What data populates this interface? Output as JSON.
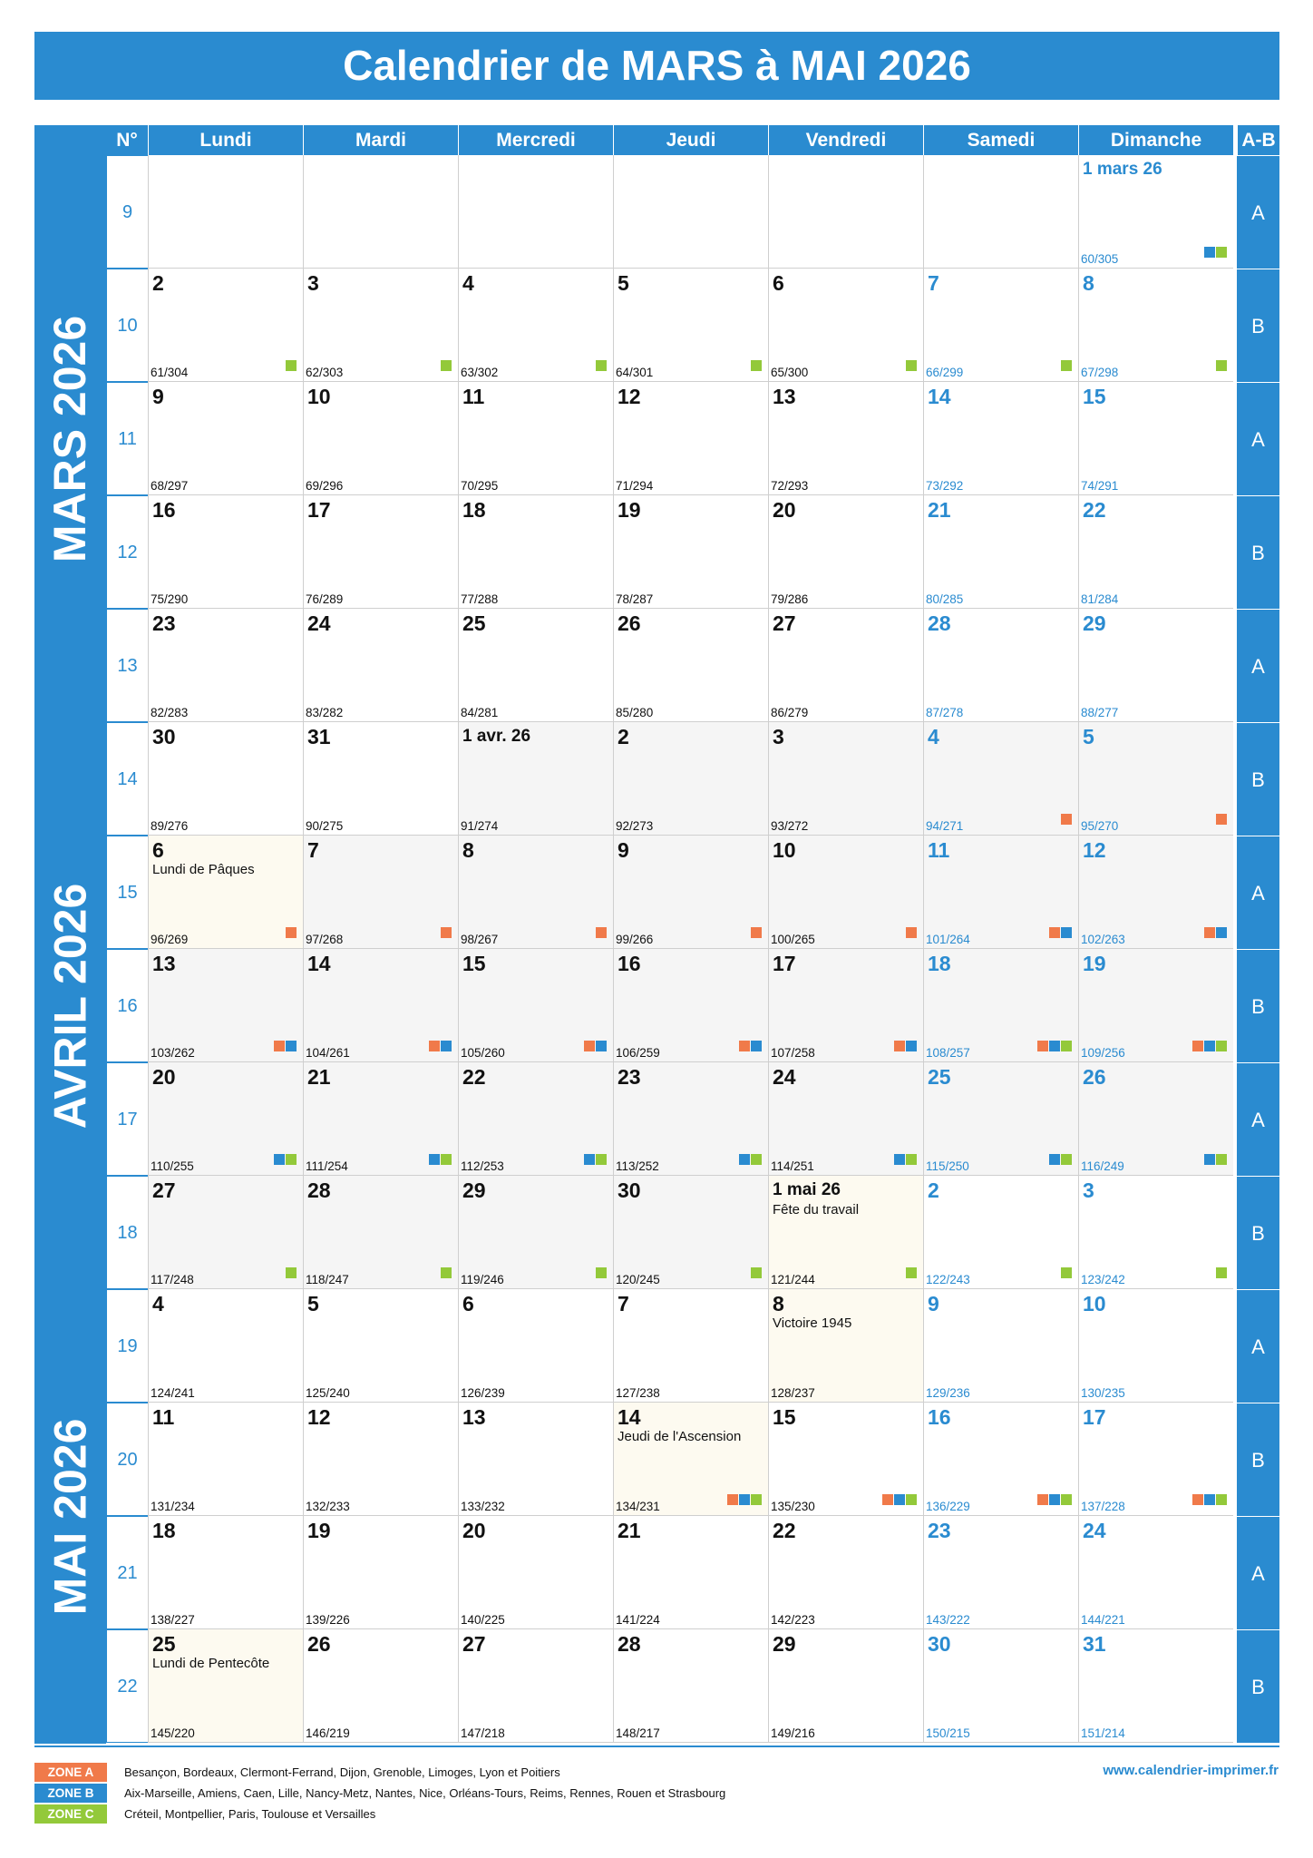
{
  "title": "Calendrier de MARS à MAI 2026",
  "headers": {
    "num": "N°",
    "days": [
      "Lundi",
      "Mardi",
      "Mercredi",
      "Jeudi",
      "Vendredi",
      "Samedi",
      "Dimanche"
    ],
    "ab": "A-B"
  },
  "months": [
    "MARS 2026",
    "AVRIL 2026",
    "MAI 2026"
  ],
  "weeks": [
    {
      "num": "9",
      "ab": "A",
      "days": [
        null,
        null,
        null,
        null,
        null,
        null,
        {
          "d": "1 mars 26",
          "c": "60/305",
          "z": "BC"
        }
      ]
    },
    {
      "num": "10",
      "ab": "B",
      "days": [
        {
          "d": "2",
          "c": "61/304",
          "z": "C"
        },
        {
          "d": "3",
          "c": "62/303",
          "z": "C"
        },
        {
          "d": "4",
          "c": "63/302",
          "z": "C"
        },
        {
          "d": "5",
          "c": "64/301",
          "z": "C"
        },
        {
          "d": "6",
          "c": "65/300",
          "z": "C"
        },
        {
          "d": "7",
          "c": "66/299",
          "z": "C"
        },
        {
          "d": "8",
          "c": "67/298",
          "z": "C"
        }
      ]
    },
    {
      "num": "11",
      "ab": "A",
      "days": [
        {
          "d": "9",
          "c": "68/297"
        },
        {
          "d": "10",
          "c": "69/296"
        },
        {
          "d": "11",
          "c": "70/295"
        },
        {
          "d": "12",
          "c": "71/294"
        },
        {
          "d": "13",
          "c": "72/293"
        },
        {
          "d": "14",
          "c": "73/292"
        },
        {
          "d": "15",
          "c": "74/291"
        }
      ]
    },
    {
      "num": "12",
      "ab": "B",
      "days": [
        {
          "d": "16",
          "c": "75/290"
        },
        {
          "d": "17",
          "c": "76/289"
        },
        {
          "d": "18",
          "c": "77/288"
        },
        {
          "d": "19",
          "c": "78/287"
        },
        {
          "d": "20",
          "c": "79/286"
        },
        {
          "d": "21",
          "c": "80/285"
        },
        {
          "d": "22",
          "c": "81/284"
        }
      ]
    },
    {
      "num": "13",
      "ab": "A",
      "days": [
        {
          "d": "23",
          "c": "82/283"
        },
        {
          "d": "24",
          "c": "83/282"
        },
        {
          "d": "25",
          "c": "84/281"
        },
        {
          "d": "26",
          "c": "85/280"
        },
        {
          "d": "27",
          "c": "86/279"
        },
        {
          "d": "28",
          "c": "87/278"
        },
        {
          "d": "29",
          "c": "88/277"
        }
      ]
    },
    {
      "num": "14",
      "ab": "B",
      "days": [
        {
          "d": "30",
          "c": "89/276"
        },
        {
          "d": "31",
          "c": "90/275"
        },
        {
          "d": "1 avr. 26",
          "c": "91/274",
          "g": 1
        },
        {
          "d": "2",
          "c": "92/273",
          "g": 1
        },
        {
          "d": "3",
          "c": "93/272",
          "g": 1
        },
        {
          "d": "4",
          "c": "94/271",
          "g": 1,
          "z": "A"
        },
        {
          "d": "5",
          "c": "95/270",
          "g": 1,
          "z": "A"
        }
      ]
    },
    {
      "num": "15",
      "ab": "A",
      "days": [
        {
          "d": "6",
          "c": "96/269",
          "h": "Lundi de Pâques",
          "z": "A"
        },
        {
          "d": "7",
          "c": "97/268",
          "g": 1,
          "z": "A"
        },
        {
          "d": "8",
          "c": "98/267",
          "g": 1,
          "z": "A"
        },
        {
          "d": "9",
          "c": "99/266",
          "g": 1,
          "z": "A"
        },
        {
          "d": "10",
          "c": "100/265",
          "g": 1,
          "z": "A"
        },
        {
          "d": "11",
          "c": "101/264",
          "g": 1,
          "z": "AB"
        },
        {
          "d": "12",
          "c": "102/263",
          "g": 1,
          "z": "AB"
        }
      ]
    },
    {
      "num": "16",
      "ab": "B",
      "days": [
        {
          "d": "13",
          "c": "103/262",
          "g": 1,
          "z": "AB"
        },
        {
          "d": "14",
          "c": "104/261",
          "g": 1,
          "z": "AB"
        },
        {
          "d": "15",
          "c": "105/260",
          "g": 1,
          "z": "AB"
        },
        {
          "d": "16",
          "c": "106/259",
          "g": 1,
          "z": "AB"
        },
        {
          "d": "17",
          "c": "107/258",
          "g": 1,
          "z": "AB"
        },
        {
          "d": "18",
          "c": "108/257",
          "g": 1,
          "z": "ABC"
        },
        {
          "d": "19",
          "c": "109/256",
          "g": 1,
          "z": "ABC"
        }
      ]
    },
    {
      "num": "17",
      "ab": "A",
      "days": [
        {
          "d": "20",
          "c": "110/255",
          "g": 1,
          "z": "BC"
        },
        {
          "d": "21",
          "c": "111/254",
          "g": 1,
          "z": "BC"
        },
        {
          "d": "22",
          "c": "112/253",
          "g": 1,
          "z": "BC"
        },
        {
          "d": "23",
          "c": "113/252",
          "g": 1,
          "z": "BC"
        },
        {
          "d": "24",
          "c": "114/251",
          "g": 1,
          "z": "BC"
        },
        {
          "d": "25",
          "c": "115/250",
          "g": 1,
          "z": "BC"
        },
        {
          "d": "26",
          "c": "116/249",
          "g": 1,
          "z": "BC"
        }
      ]
    },
    {
      "num": "18",
      "ab": "B",
      "days": [
        {
          "d": "27",
          "c": "117/248",
          "g": 1,
          "z": "C"
        },
        {
          "d": "28",
          "c": "118/247",
          "g": 1,
          "z": "C"
        },
        {
          "d": "29",
          "c": "119/246",
          "g": 1,
          "z": "C"
        },
        {
          "d": "30",
          "c": "120/245",
          "g": 1,
          "z": "C"
        },
        {
          "d": "1 mai 26",
          "c": "121/244",
          "h": "Fête du travail",
          "z": "C"
        },
        {
          "d": "2",
          "c": "122/243",
          "z": "C"
        },
        {
          "d": "3",
          "c": "123/242",
          "z": "C"
        }
      ]
    },
    {
      "num": "19",
      "ab": "A",
      "days": [
        {
          "d": "4",
          "c": "124/241"
        },
        {
          "d": "5",
          "c": "125/240"
        },
        {
          "d": "6",
          "c": "126/239"
        },
        {
          "d": "7",
          "c": "127/238"
        },
        {
          "d": "8",
          "c": "128/237",
          "h": "Victoire 1945"
        },
        {
          "d": "9",
          "c": "129/236"
        },
        {
          "d": "10",
          "c": "130/235"
        }
      ]
    },
    {
      "num": "20",
      "ab": "B",
      "days": [
        {
          "d": "11",
          "c": "131/234"
        },
        {
          "d": "12",
          "c": "132/233"
        },
        {
          "d": "13",
          "c": "133/232"
        },
        {
          "d": "14",
          "c": "134/231",
          "h": "Jeudi de l'Ascension",
          "z": "ABC"
        },
        {
          "d": "15",
          "c": "135/230",
          "z": "ABC"
        },
        {
          "d": "16",
          "c": "136/229",
          "z": "ABC"
        },
        {
          "d": "17",
          "c": "137/228",
          "z": "ABC"
        }
      ]
    },
    {
      "num": "21",
      "ab": "A",
      "days": [
        {
          "d": "18",
          "c": "138/227"
        },
        {
          "d": "19",
          "c": "139/226"
        },
        {
          "d": "20",
          "c": "140/225"
        },
        {
          "d": "21",
          "c": "141/224"
        },
        {
          "d": "22",
          "c": "142/223"
        },
        {
          "d": "23",
          "c": "143/222"
        },
        {
          "d": "24",
          "c": "144/221"
        }
      ]
    },
    {
      "num": "22",
      "ab": "B",
      "days": [
        {
          "d": "25",
          "c": "145/220",
          "h": "Lundi de Pentecôte"
        },
        {
          "d": "26",
          "c": "146/219"
        },
        {
          "d": "27",
          "c": "147/218"
        },
        {
          "d": "28",
          "c": "148/217"
        },
        {
          "d": "29",
          "c": "149/216"
        },
        {
          "d": "30",
          "c": "150/215"
        },
        {
          "d": "31",
          "c": "151/214"
        }
      ]
    }
  ],
  "legend": [
    {
      "label": "ZONE A",
      "text": "Besançon, Bordeaux, Clermont-Ferrand, Dijon, Grenoble, Limoges, Lyon et Poitiers",
      "color": "#f07a4a"
    },
    {
      "label": "ZONE B",
      "text": "Aix-Marseille, Amiens, Caen, Lille, Nancy-Metz, Nantes, Nice, Orléans-Tours, Reims, Rennes, Rouen et Strasbourg",
      "color": "#2a8bd0"
    },
    {
      "label": "ZONE C",
      "text": "Créteil, Montpellier, Paris, Toulouse et Versailles",
      "color": "#93c93a"
    }
  ],
  "website": "www.calendrier-imprimer.fr",
  "colors": {
    "accent": "#2a8bd0",
    "zoneA": "#f07a4a",
    "zoneB": "#2a8bd0",
    "zoneC": "#93c93a"
  }
}
